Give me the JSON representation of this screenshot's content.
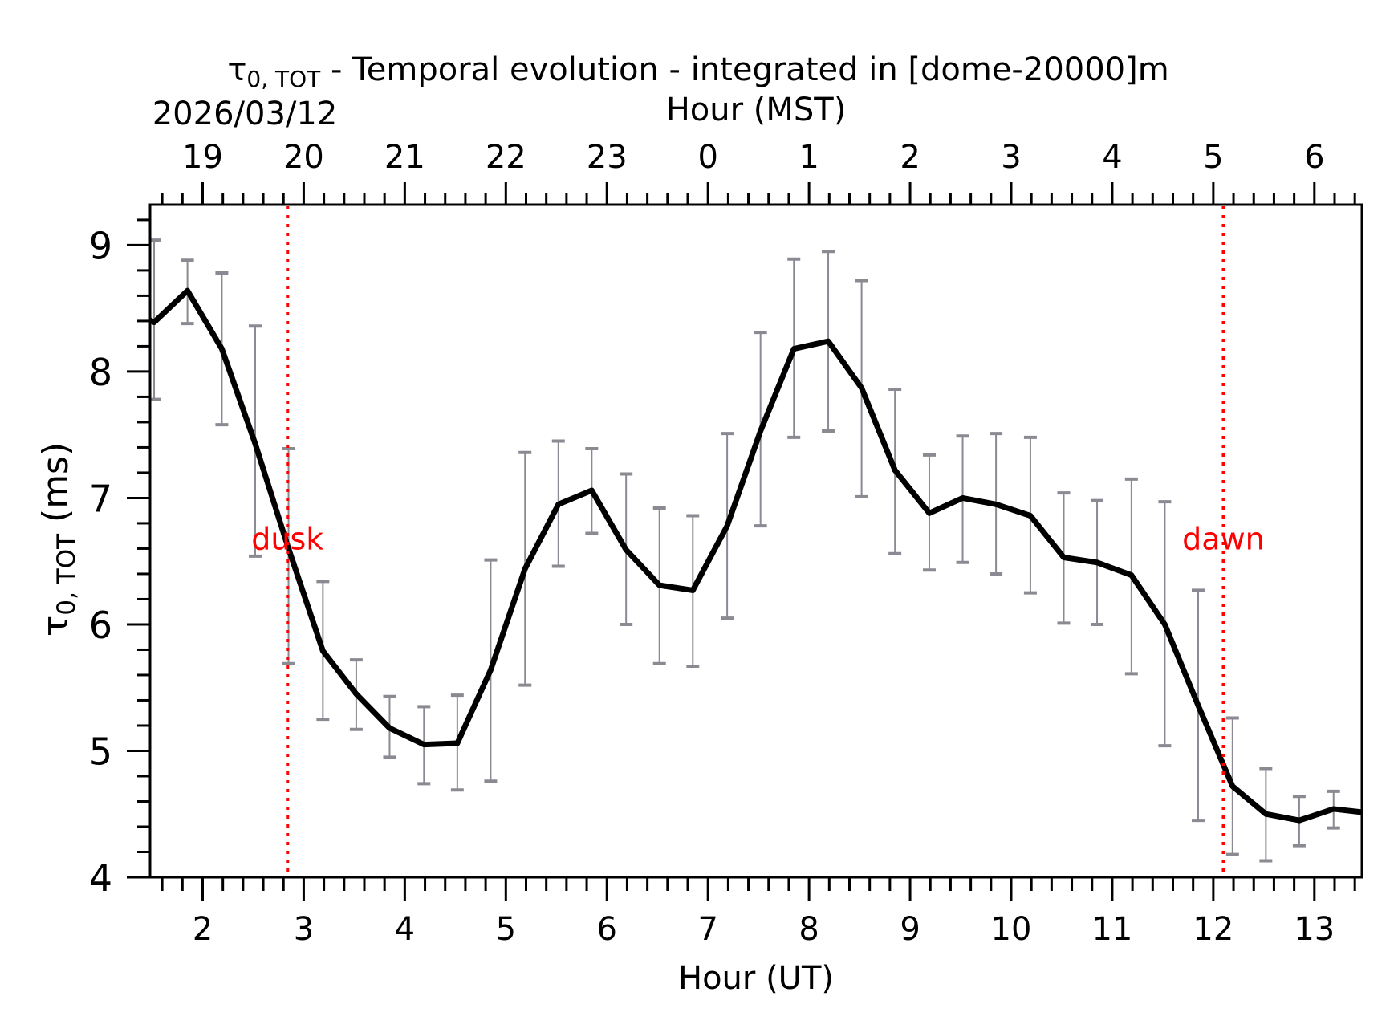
{
  "chart_data": {
    "type": "line",
    "title_symbol": "τ",
    "title_subscript": "0, TOT",
    "title_rest": " - Temporal evolution - integrated in [dome-20000]m",
    "xlabel": "Hour (UT)",
    "x2label": "Hour (MST)",
    "date_label": "2026/03/12",
    "ylabel_symbol": "τ",
    "ylabel_subscript": "0, TOT",
    "ylabel_rest": " (ms)",
    "xlim": [
      1.48,
      13.47
    ],
    "ylim": [
      4.0,
      9.32
    ],
    "x_ticks": [
      2,
      3,
      4,
      5,
      6,
      7,
      8,
      9,
      10,
      11,
      12,
      13
    ],
    "x_tick_labels": [
      "2",
      "3",
      "4",
      "5",
      "6",
      "7",
      "8",
      "9",
      "10",
      "11",
      "12",
      "13"
    ],
    "x2_tick_labels": [
      "19",
      "20",
      "21",
      "22",
      "23",
      "0",
      "1",
      "2",
      "3",
      "4",
      "5",
      "6"
    ],
    "y_ticks": [
      4,
      5,
      6,
      7,
      8,
      9
    ],
    "y_tick_labels": [
      "4",
      "5",
      "6",
      "7",
      "8",
      "9"
    ],
    "grid": false,
    "line_color": "#000000",
    "errorbar_color": "#8a8a92",
    "marker_color": "#ff0000",
    "series": [
      {
        "x": [
          1.52,
          1.85,
          2.19,
          2.52,
          2.85,
          3.19,
          3.52,
          3.85,
          4.19,
          4.52,
          4.85,
          5.19,
          5.52,
          5.85,
          6.19,
          6.52,
          6.85,
          7.19,
          7.52,
          7.85,
          8.19,
          8.52,
          8.85,
          9.19,
          9.52,
          9.85,
          10.19,
          10.52,
          10.85,
          11.19,
          11.52,
          11.85,
          12.19,
          12.52,
          12.85,
          13.19,
          13.52
        ],
        "y": [
          8.39,
          8.64,
          8.18,
          7.43,
          6.6,
          5.79,
          5.45,
          5.18,
          5.05,
          5.06,
          5.64,
          6.44,
          6.95,
          7.06,
          6.59,
          6.31,
          6.27,
          6.78,
          7.53,
          8.18,
          8.24,
          7.87,
          7.22,
          6.88,
          7.0,
          6.95,
          6.86,
          6.53,
          6.49,
          6.39,
          6.0,
          5.36,
          4.72,
          4.5,
          4.45,
          4.54,
          4.51
        ],
        "y_upper": [
          9.04,
          8.88,
          8.78,
          8.36,
          7.39,
          6.34,
          5.72,
          5.43,
          5.35,
          5.44,
          6.51,
          7.36,
          7.45,
          7.39,
          7.19,
          6.92,
          6.86,
          7.51,
          8.31,
          8.89,
          8.95,
          8.72,
          7.86,
          7.34,
          7.49,
          7.51,
          7.48,
          7.04,
          6.98,
          7.15,
          6.97,
          6.27,
          5.26,
          4.86,
          4.64,
          4.68,
          null
        ],
        "y_lower": [
          7.78,
          8.38,
          7.58,
          6.54,
          5.69,
          5.25,
          5.17,
          4.95,
          4.74,
          4.69,
          4.76,
          5.52,
          6.46,
          6.72,
          6.0,
          5.69,
          5.67,
          6.05,
          6.78,
          7.48,
          7.53,
          7.01,
          6.56,
          6.43,
          6.49,
          6.4,
          6.25,
          6.01,
          6.0,
          5.61,
          5.04,
          4.45,
          4.18,
          4.13,
          4.25,
          4.39,
          null
        ]
      }
    ],
    "markers": [
      {
        "label": "dusk",
        "x": 2.84,
        "label_y": 6.67
      },
      {
        "label": "dawn",
        "x": 12.1,
        "label_y": 6.67
      }
    ]
  }
}
